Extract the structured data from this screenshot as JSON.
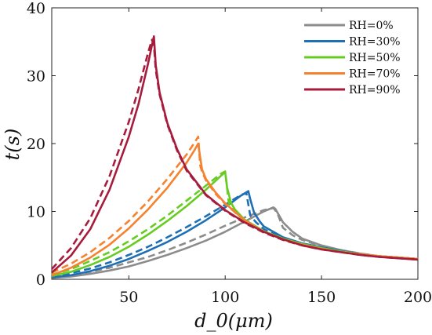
{
  "chart_data": {
    "type": "line",
    "title": "",
    "xlabel": "d_0(μm)",
    "ylabel": "t(s)",
    "xlim": [
      10,
      200
    ],
    "ylim": [
      0,
      40
    ],
    "xticks": [
      50,
      100,
      150,
      200
    ],
    "yticks": [
      0,
      10,
      20,
      30,
      40
    ],
    "xtick_labels": [
      "50",
      "100",
      "150",
      "200"
    ],
    "ytick_labels": [
      "0",
      "10",
      "20",
      "30",
      "40"
    ],
    "grid": false,
    "legend_position": "top-right",
    "line_styles": {
      "model": "solid",
      "reference": "dashed"
    },
    "series": [
      {
        "name": "RH=0%",
        "color": "#8c8c8c",
        "solid": [
          [
            10,
            0.2
          ],
          [
            20,
            0.4
          ],
          [
            30,
            0.8
          ],
          [
            40,
            1.3
          ],
          [
            50,
            1.9
          ],
          [
            60,
            2.7
          ],
          [
            70,
            3.6
          ],
          [
            80,
            4.6
          ],
          [
            90,
            5.7
          ],
          [
            100,
            7.0
          ],
          [
            110,
            8.5
          ],
          [
            120,
            10.0
          ],
          [
            125,
            10.6
          ],
          [
            126,
            10.4
          ],
          [
            128,
            9.4
          ],
          [
            130,
            8.4
          ],
          [
            135,
            7.0
          ],
          [
            140,
            6.0
          ],
          [
            150,
            5.0
          ],
          [
            160,
            4.3
          ],
          [
            170,
            3.8
          ],
          [
            180,
            3.4
          ],
          [
            190,
            3.2
          ],
          [
            200,
            3.0
          ]
        ],
        "dashed": [
          [
            10,
            0.3
          ],
          [
            20,
            0.6
          ],
          [
            30,
            1.1
          ],
          [
            40,
            1.7
          ],
          [
            50,
            2.5
          ],
          [
            60,
            3.3
          ],
          [
            70,
            4.3
          ],
          [
            80,
            5.4
          ],
          [
            90,
            6.6
          ],
          [
            100,
            7.9
          ],
          [
            110,
            9.1
          ],
          [
            120,
            10.2
          ],
          [
            125,
            10.5
          ],
          [
            127,
            9.8
          ],
          [
            130,
            7.6
          ],
          [
            135,
            6.5
          ],
          [
            140,
            5.8
          ],
          [
            150,
            4.9
          ],
          [
            160,
            4.3
          ],
          [
            170,
            3.8
          ],
          [
            180,
            3.4
          ],
          [
            190,
            3.2
          ],
          [
            200,
            3.0
          ]
        ]
      },
      {
        "name": "RH=30%",
        "color": "#1f6fb4",
        "solid": [
          [
            10,
            0.3
          ],
          [
            20,
            0.6
          ],
          [
            30,
            1.2
          ],
          [
            40,
            2.0
          ],
          [
            50,
            3.0
          ],
          [
            60,
            4.2
          ],
          [
            70,
            5.5
          ],
          [
            80,
            7.0
          ],
          [
            90,
            8.7
          ],
          [
            100,
            10.6
          ],
          [
            108,
            12.3
          ],
          [
            112,
            13.0
          ],
          [
            113,
            11.8
          ],
          [
            115,
            9.8
          ],
          [
            118,
            8.5
          ],
          [
            120,
            7.8
          ],
          [
            130,
            6.2
          ],
          [
            140,
            5.3
          ],
          [
            150,
            4.7
          ],
          [
            160,
            4.2
          ],
          [
            170,
            3.7
          ],
          [
            180,
            3.4
          ],
          [
            190,
            3.2
          ],
          [
            200,
            3.0
          ]
        ],
        "dashed": [
          [
            10,
            0.4
          ],
          [
            20,
            0.9
          ],
          [
            30,
            1.6
          ],
          [
            40,
            2.5
          ],
          [
            50,
            3.6
          ],
          [
            60,
            4.8
          ],
          [
            70,
            6.2
          ],
          [
            80,
            7.7
          ],
          [
            90,
            9.3
          ],
          [
            100,
            11.0
          ],
          [
            108,
            12.4
          ],
          [
            111,
            12.7
          ],
          [
            113,
            9.4
          ],
          [
            116,
            8.4
          ],
          [
            120,
            7.4
          ],
          [
            130,
            6.0
          ],
          [
            140,
            5.2
          ],
          [
            150,
            4.6
          ],
          [
            160,
            4.1
          ],
          [
            170,
            3.7
          ],
          [
            180,
            3.4
          ],
          [
            190,
            3.2
          ],
          [
            200,
            3.0
          ]
        ]
      },
      {
        "name": "RH=50%",
        "color": "#66cc22",
        "solid": [
          [
            10,
            0.5
          ],
          [
            20,
            1.1
          ],
          [
            30,
            2.1
          ],
          [
            40,
            3.3
          ],
          [
            50,
            4.8
          ],
          [
            60,
            6.6
          ],
          [
            70,
            8.6
          ],
          [
            80,
            10.8
          ],
          [
            90,
            13.2
          ],
          [
            98,
            15.3
          ],
          [
            100,
            15.8
          ],
          [
            101,
            13.5
          ],
          [
            103,
            11.3
          ],
          [
            105,
            10.3
          ],
          [
            110,
            8.8
          ],
          [
            120,
            7.1
          ],
          [
            130,
            6.0
          ],
          [
            140,
            5.2
          ],
          [
            150,
            4.6
          ],
          [
            160,
            4.1
          ],
          [
            170,
            3.7
          ],
          [
            180,
            3.4
          ],
          [
            190,
            3.2
          ],
          [
            200,
            3.0
          ]
        ],
        "dashed": [
          [
            10,
            0.7
          ],
          [
            20,
            1.5
          ],
          [
            30,
            2.7
          ],
          [
            40,
            4.0
          ],
          [
            50,
            5.6
          ],
          [
            60,
            7.4
          ],
          [
            70,
            9.4
          ],
          [
            80,
            11.6
          ],
          [
            90,
            13.8
          ],
          [
            98,
            15.6
          ],
          [
            100,
            15.9
          ],
          [
            102,
            11.0
          ],
          [
            105,
            9.9
          ],
          [
            110,
            8.6
          ],
          [
            120,
            7.0
          ],
          [
            130,
            5.9
          ],
          [
            140,
            5.1
          ],
          [
            150,
            4.5
          ],
          [
            160,
            4.1
          ],
          [
            170,
            3.7
          ],
          [
            180,
            3.4
          ],
          [
            190,
            3.2
          ],
          [
            200,
            3.0
          ]
        ]
      },
      {
        "name": "RH=70%",
        "color": "#f58230",
        "solid": [
          [
            10,
            0.6
          ],
          [
            20,
            1.7
          ],
          [
            30,
            3.2
          ],
          [
            40,
            5.1
          ],
          [
            50,
            7.5
          ],
          [
            60,
            10.3
          ],
          [
            70,
            13.5
          ],
          [
            80,
            17.2
          ],
          [
            84,
            19.0
          ],
          [
            86,
            20.0
          ],
          [
            87,
            18.0
          ],
          [
            88,
            16.2
          ],
          [
            90,
            14.8
          ],
          [
            95,
            12.8
          ],
          [
            100,
            11.2
          ],
          [
            110,
            8.7
          ],
          [
            120,
            7.0
          ],
          [
            130,
            5.9
          ],
          [
            140,
            5.1
          ],
          [
            150,
            4.5
          ],
          [
            160,
            4.0
          ],
          [
            170,
            3.7
          ],
          [
            180,
            3.4
          ],
          [
            190,
            3.2
          ],
          [
            200,
            3.0
          ]
        ],
        "dashed": [
          [
            10,
            1.0
          ],
          [
            20,
            2.3
          ],
          [
            30,
            4.0
          ],
          [
            40,
            6.1
          ],
          [
            50,
            8.6
          ],
          [
            60,
            11.5
          ],
          [
            70,
            14.8
          ],
          [
            80,
            18.4
          ],
          [
            84,
            20.1
          ],
          [
            86,
            21.0
          ],
          [
            87,
            16.8
          ],
          [
            88,
            15.8
          ],
          [
            90,
            14.6
          ],
          [
            95,
            12.6
          ],
          [
            100,
            11.1
          ],
          [
            110,
            8.7
          ],
          [
            120,
            7.0
          ],
          [
            130,
            5.8
          ],
          [
            140,
            5.0
          ],
          [
            150,
            4.4
          ],
          [
            160,
            4.0
          ],
          [
            170,
            3.6
          ],
          [
            180,
            3.4
          ],
          [
            190,
            3.2
          ],
          [
            200,
            3.0
          ]
        ]
      },
      {
        "name": "RH=90%",
        "color": "#a61c3c",
        "solid": [
          [
            10,
            1.0
          ],
          [
            20,
            3.5
          ],
          [
            30,
            7.4
          ],
          [
            40,
            13.2
          ],
          [
            50,
            21.0
          ],
          [
            55,
            25.8
          ],
          [
            60,
            31.8
          ],
          [
            62,
            34.5
          ],
          [
            63,
            35.8
          ],
          [
            64,
            31.5
          ],
          [
            66,
            27.5
          ],
          [
            70,
            23.0
          ],
          [
            75,
            19.2
          ],
          [
            80,
            16.2
          ],
          [
            90,
            12.5
          ],
          [
            100,
            10.2
          ],
          [
            110,
            8.4
          ],
          [
            120,
            7.0
          ],
          [
            130,
            5.9
          ],
          [
            140,
            5.0
          ],
          [
            150,
            4.4
          ],
          [
            160,
            4.0
          ],
          [
            170,
            3.6
          ],
          [
            180,
            3.3
          ],
          [
            190,
            3.1
          ],
          [
            200,
            2.9
          ]
        ],
        "dashed": [
          [
            10,
            1.5
          ],
          [
            20,
            4.6
          ],
          [
            30,
            9.0
          ],
          [
            40,
            15.2
          ],
          [
            50,
            23.2
          ],
          [
            55,
            28.0
          ],
          [
            60,
            33.4
          ],
          [
            62,
            35.3
          ],
          [
            63,
            34.5
          ],
          [
            64,
            30.8
          ],
          [
            66,
            27.2
          ],
          [
            70,
            22.8
          ],
          [
            75,
            19.0
          ],
          [
            80,
            16.0
          ],
          [
            90,
            12.4
          ],
          [
            100,
            10.1
          ],
          [
            110,
            8.3
          ],
          [
            120,
            6.9
          ],
          [
            130,
            5.8
          ],
          [
            140,
            5.0
          ],
          [
            150,
            4.4
          ],
          [
            160,
            4.0
          ],
          [
            170,
            3.6
          ],
          [
            180,
            3.3
          ],
          [
            190,
            3.1
          ],
          [
            200,
            2.9
          ]
        ]
      }
    ]
  }
}
